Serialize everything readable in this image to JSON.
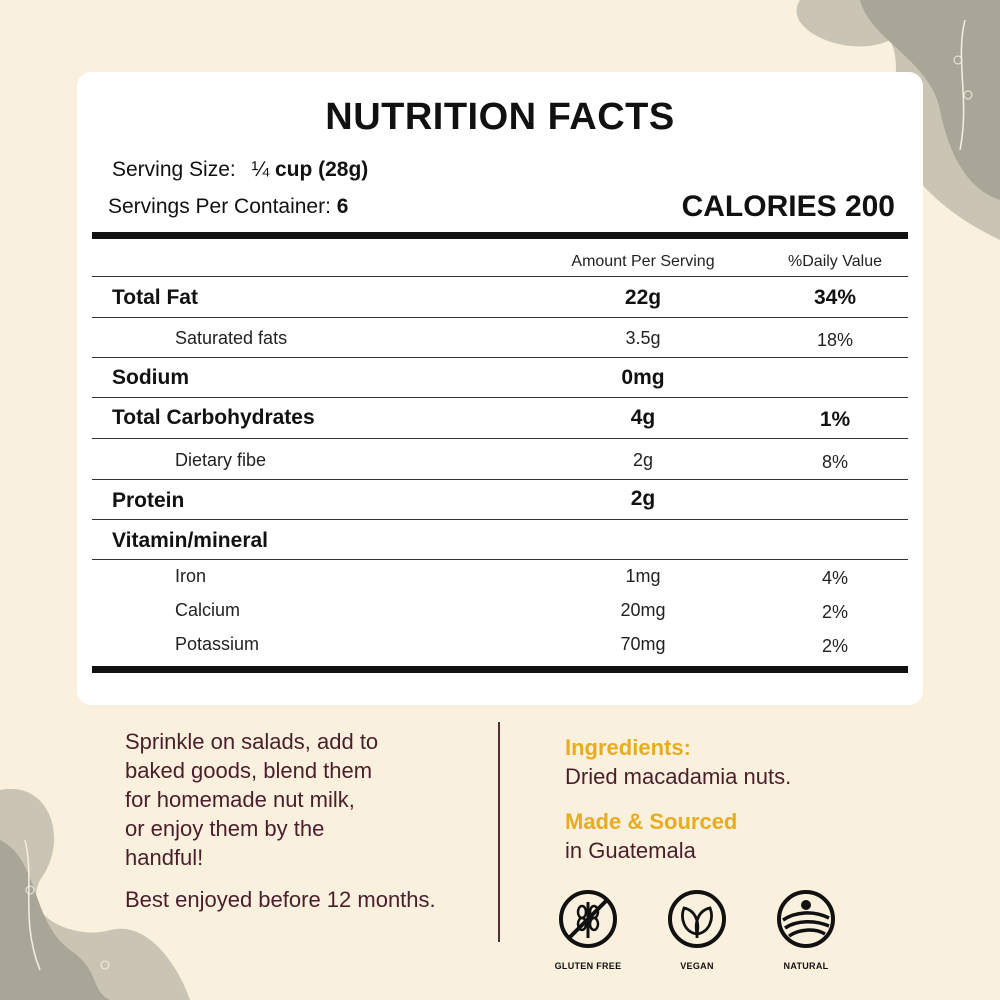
{
  "title": "NUTRITION FACTS",
  "serving": {
    "size_label": "Serving Size:",
    "size_value_prefix": "¼",
    "size_value": "cup (28g)",
    "per_container_label": "Servings Per Container:",
    "per_container_value": "6"
  },
  "calories": "CALORIES 200",
  "table": {
    "header_amount": "Amount Per Serving",
    "header_dv": "%Daily Value",
    "rows": [
      {
        "label": "Total Fat",
        "amount": "22g",
        "dv": "34%"
      },
      {
        "label": "Saturated fats",
        "amount": "3.5g",
        "dv": "18%"
      },
      {
        "label": "Sodium",
        "amount": "0mg",
        "dv": ""
      },
      {
        "label": "Total Carbohydrates",
        "amount": "4g",
        "dv": "1%"
      },
      {
        "label": "Dietary fibe",
        "amount": "2g",
        "dv": "8%"
      },
      {
        "label": "Protein",
        "amount": "2g",
        "dv": ""
      },
      {
        "label": "Vitamin/mineral",
        "amount": "",
        "dv": ""
      },
      {
        "label": "Iron",
        "amount": "1mg",
        "dv": "4%"
      },
      {
        "label": "Calcium",
        "amount": "20mg",
        "dv": "2%"
      },
      {
        "label": "Potassium",
        "amount": "70mg",
        "dv": "2%"
      }
    ]
  },
  "usage": {
    "lines": [
      "Sprinkle on salads, add to",
      "baked goods, blend them",
      "for homemade nut milk,",
      "or enjoy them by the",
      "handful!"
    ],
    "shelf_life": "Best enjoyed before 12 months."
  },
  "ingredients": {
    "heading": "Ingredients:",
    "text": "Dried macadamia nuts."
  },
  "origin": {
    "heading": "Made & Sourced",
    "text": "in Guatemala"
  },
  "badges": [
    {
      "icon": "gluten-free-icon",
      "label": "GLUTEN FREE"
    },
    {
      "icon": "vegan-leaf-icon",
      "label": "VEGAN"
    },
    {
      "icon": "natural-field-icon",
      "label": "NATURAL"
    }
  ],
  "colors": {
    "background": "#f9f1dd",
    "accent": "#e8ac20",
    "text_dark": "#4a1e2c"
  }
}
